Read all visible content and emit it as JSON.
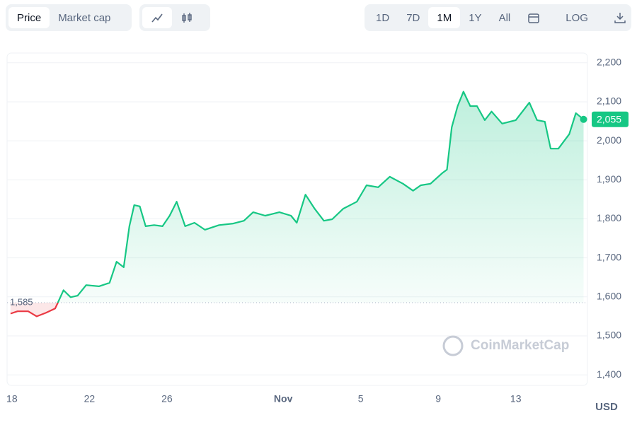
{
  "toolbar": {
    "views": [
      "Price",
      "Market cap"
    ],
    "ranges": [
      "1D",
      "7D",
      "1M",
      "1Y",
      "All"
    ],
    "scale": "LOG"
  },
  "chart_data": {
    "type": "line",
    "currency": "USD",
    "watermark": "CoinMarketCap",
    "x": [
      -0.07,
      0.29,
      0.84,
      1.28,
      1.75,
      2.23,
      2.37,
      2.66,
      3.03,
      3.39,
      3.83,
      4.49,
      5.04,
      5.4,
      5.77,
      6.06,
      6.31,
      6.6,
      6.9,
      7.34,
      7.77,
      8.14,
      8.5,
      8.94,
      9.42,
      9.96,
      10.69,
      11.42,
      11.97,
      12.45,
      13.07,
      13.8,
      14.4,
      14.7,
      15.15,
      15.62,
      16.1,
      16.53,
      17.1,
      17.8,
      18.3,
      18.9,
      19.5,
      20.18,
      20.7,
      21.1,
      21.6,
      22.2,
      22.45,
      22.7,
      23.0,
      23.3,
      23.65,
      24.0,
      24.4,
      24.75,
      25.3,
      26.0,
      26.7,
      27.1,
      27.5,
      27.8,
      28.2,
      28.76,
      29.1,
      29.5
    ],
    "values": [
      1557,
      1563,
      1563,
      1550,
      1559,
      1570,
      1585,
      1617,
      1599,
      1603,
      1630,
      1627,
      1636,
      1690,
      1676,
      1781,
      1835,
      1832,
      1781,
      1784,
      1781,
      1808,
      1844,
      1781,
      1790,
      1772,
      1784,
      1788,
      1795,
      1817,
      1808,
      1817,
      1808,
      1790,
      1862,
      1826,
      1795,
      1799,
      1826,
      1844,
      1886,
      1881,
      1908,
      1890,
      1872,
      1886,
      1890,
      1917,
      1926,
      2035,
      2089,
      2126,
      2089,
      2089,
      2053,
      2075,
      2044,
      2053,
      2098,
      2053,
      2049,
      1980,
      1980,
      2017,
      2071,
      2055
    ],
    "up_color": "#16c784",
    "down_color": "#ea3943",
    "baseline": {
      "value": 1585,
      "label": "1,585"
    },
    "current_price": {
      "value": 2055,
      "label": "2,055"
    },
    "xlim": [
      -0.25,
      29.7
    ],
    "xticks": [
      {
        "value": 0,
        "label": "18"
      },
      {
        "value": 4,
        "label": "22"
      },
      {
        "value": 8,
        "label": "26"
      },
      {
        "value": 14,
        "label": "Nov"
      },
      {
        "value": 18,
        "label": "5"
      },
      {
        "value": 22,
        "label": "9"
      },
      {
        "value": 26,
        "label": "13"
      }
    ],
    "ylim": [
      1373,
      2225
    ],
    "yticks": [
      {
        "value": 1400,
        "label": "1,400"
      },
      {
        "value": 1500,
        "label": "1,500"
      },
      {
        "value": 1600,
        "label": "1,600"
      },
      {
        "value": 1700,
        "label": "1,700"
      },
      {
        "value": 1800,
        "label": "1,800"
      },
      {
        "value": 1900,
        "label": "1,900"
      },
      {
        "value": 2000,
        "label": "2,000"
      },
      {
        "value": 2100,
        "label": "2,100"
      },
      {
        "value": 2200,
        "label": "2,200"
      }
    ],
    "grid": true
  }
}
